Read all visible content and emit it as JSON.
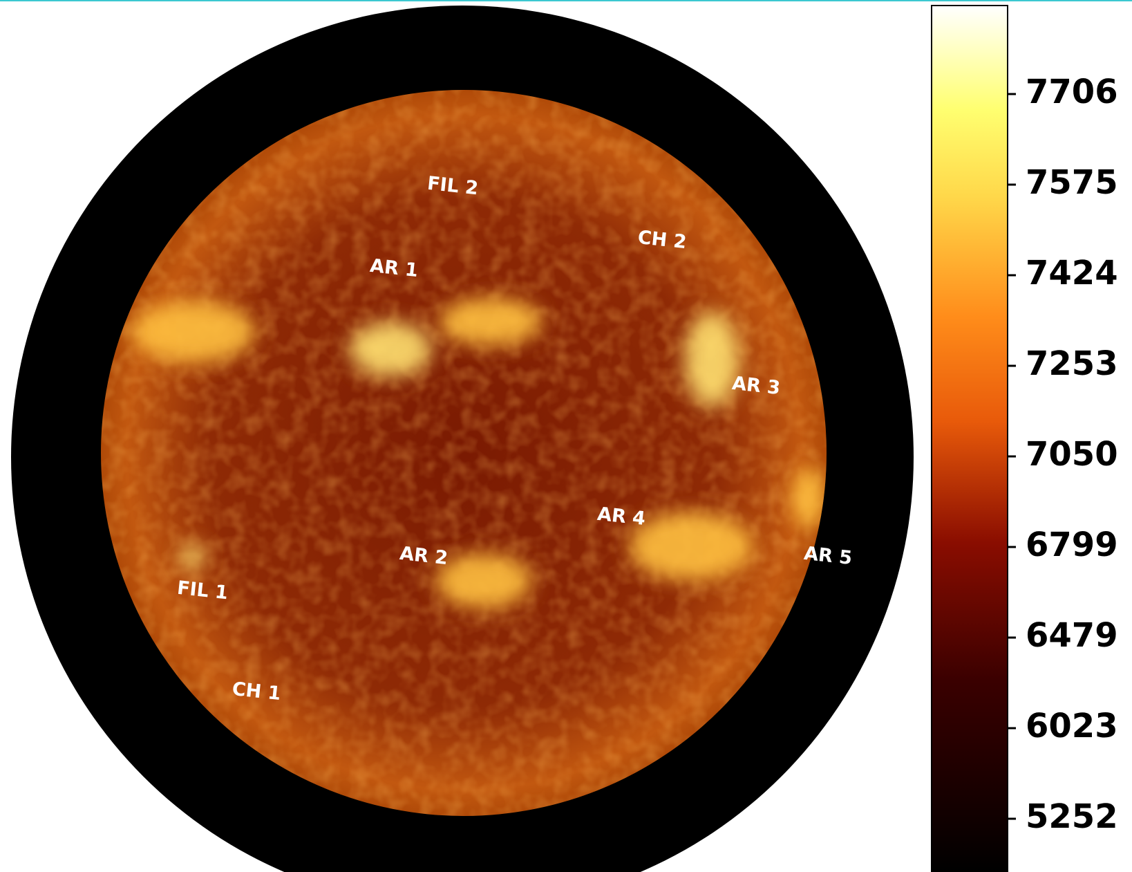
{
  "labels": [
    "FIL 2",
    "CH 2",
    "AR 1",
    "AR 3",
    "AR 4",
    "AR 2",
    "AR 5",
    "FIL 1",
    "CH 1"
  ],
  "colorbar": {
    "ticks": [
      7706,
      7575,
      7424,
      7253,
      7050,
      6799,
      6479,
      6023,
      5252
    ]
  }
}
